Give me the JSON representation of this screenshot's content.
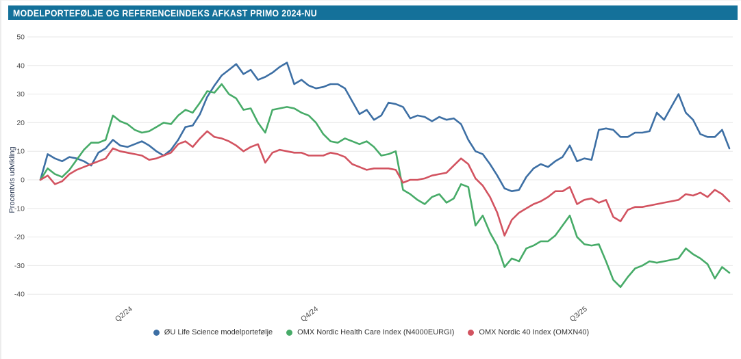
{
  "header": {
    "title": "MODELPORTEFØLJE OG REFERENCEINDEKS AFKAST PRIMO 2024-NU",
    "background": "#14719a",
    "text_color": "#ffffff"
  },
  "colors": {
    "grid": "#e7e7e7",
    "tick_text": "#4a4a4a",
    "axis_label_text": "#2b3a55",
    "legend_text": "#333333",
    "page_background": "#ffffff"
  },
  "chart_data": {
    "type": "line",
    "title": "MODELPORTEFØLJE OG REFERENCEINDEKS AFKAST PRIMO 2024-NU",
    "xlabel": "",
    "ylabel": "Procentvis udvikling",
    "ylim": [
      -40,
      50
    ],
    "yticks": [
      50,
      40,
      30,
      20,
      10,
      0,
      -10,
      -20,
      -30,
      -40
    ],
    "grid": true,
    "legend_position": "bottom",
    "x_unit": "weeks since primo 2024",
    "xticks": [
      {
        "label": "Q2/24",
        "x_index": 11.9
      },
      {
        "label": "Q4/24",
        "x_index": 37.5
      },
      {
        "label": "Q3/25",
        "x_index": 74.6
      }
    ],
    "series": [
      {
        "name": "ØU Life Science modelportefølje",
        "color": "#3d6fa4",
        "values": [
          0,
          9,
          7.5,
          6.5,
          8,
          7.5,
          6.5,
          5,
          9.5,
          11,
          14,
          12,
          11.5,
          12.5,
          13.5,
          12,
          10,
          8.5,
          10.5,
          14,
          18.5,
          19,
          23,
          29,
          33,
          36.5,
          38.5,
          40.5,
          37,
          38.5,
          35,
          36,
          37.5,
          39.5,
          41,
          33.5,
          35,
          33,
          32,
          32.5,
          33.5,
          33.5,
          32,
          27.5,
          23,
          24.5,
          21,
          22.5,
          27,
          26.5,
          25.5,
          21.5,
          22.5,
          22,
          20.5,
          22,
          21,
          21.5,
          19.5,
          14,
          10,
          9,
          5.5,
          1.5,
          -3,
          -4,
          -3.5,
          1,
          4,
          5.5,
          4.5,
          6.5,
          8,
          12,
          6.5,
          7.5,
          7,
          17.5,
          18,
          17.5,
          15,
          15,
          16.5,
          16.5,
          17,
          23.5,
          21,
          25.5,
          30,
          23.5,
          21,
          16,
          15,
          15,
          17.5,
          11
        ]
      },
      {
        "name": "OMX Nordic Health Care Index (N4000EURGI)",
        "color": "#47ab68",
        "values": [
          0,
          4,
          2,
          1,
          3.5,
          7,
          10.5,
          13,
          13,
          14,
          22.5,
          20.5,
          19.5,
          17.5,
          16.5,
          17,
          18.5,
          20,
          19.5,
          22.5,
          24.5,
          23.5,
          27,
          31,
          30.5,
          33.5,
          30,
          28.5,
          24.5,
          25,
          20,
          16.5,
          24.5,
          25,
          25.5,
          25,
          23.5,
          22.5,
          20,
          16,
          13.5,
          13,
          14.5,
          13.5,
          12.5,
          13.5,
          11.5,
          8.5,
          9,
          10,
          -3.5,
          -5,
          -7,
          -8.5,
          -6,
          -5,
          -8,
          -6.5,
          -1.5,
          -2.5,
          -16,
          -12.5,
          -18.5,
          -23,
          -30.5,
          -27.5,
          -28.5,
          -24,
          -23,
          -21.5,
          -21.5,
          -19.5,
          -16,
          -12.5,
          -20,
          -22.5,
          -23,
          -22.5,
          -28.5,
          -35,
          -37.5,
          -34,
          -31,
          -30,
          -28.5,
          -29,
          -28.5,
          -28,
          -27.5,
          -24,
          -26,
          -27.5,
          -29.5,
          -34.5,
          -30.5,
          -32.5
        ]
      },
      {
        "name": "OMX Nordic 40 Index (OMXN40)",
        "color": "#d25360",
        "values": [
          0,
          1.5,
          -1.5,
          -0.5,
          2,
          3.5,
          4.5,
          5.5,
          6.5,
          7.5,
          11,
          10,
          9.5,
          9,
          8.5,
          7,
          7.5,
          8.5,
          9.5,
          12.5,
          13.5,
          11.5,
          14.5,
          17,
          15,
          14.5,
          13.5,
          12,
          10,
          11.5,
          12.5,
          6,
          9.5,
          10.5,
          10,
          9.5,
          9.5,
          8.5,
          8.5,
          8.5,
          9.5,
          9,
          8,
          5.5,
          4.5,
          3.5,
          4,
          4,
          4,
          3.5,
          -1,
          0,
          0,
          0.5,
          1.5,
          2,
          2.5,
          5,
          7.5,
          5.5,
          0.5,
          -2,
          -6,
          -11.5,
          -19.5,
          -14,
          -11.5,
          -10,
          -8.5,
          -7.5,
          -6,
          -4,
          -4,
          -2.5,
          -8.5,
          -7,
          -6.5,
          -8,
          -7,
          -13,
          -14.5,
          -10.5,
          -9.5,
          -9.5,
          -9,
          -8.5,
          -8,
          -7.5,
          -7,
          -5,
          -5.5,
          -4.5,
          -6,
          -3.5,
          -5,
          -7.5
        ]
      }
    ]
  }
}
